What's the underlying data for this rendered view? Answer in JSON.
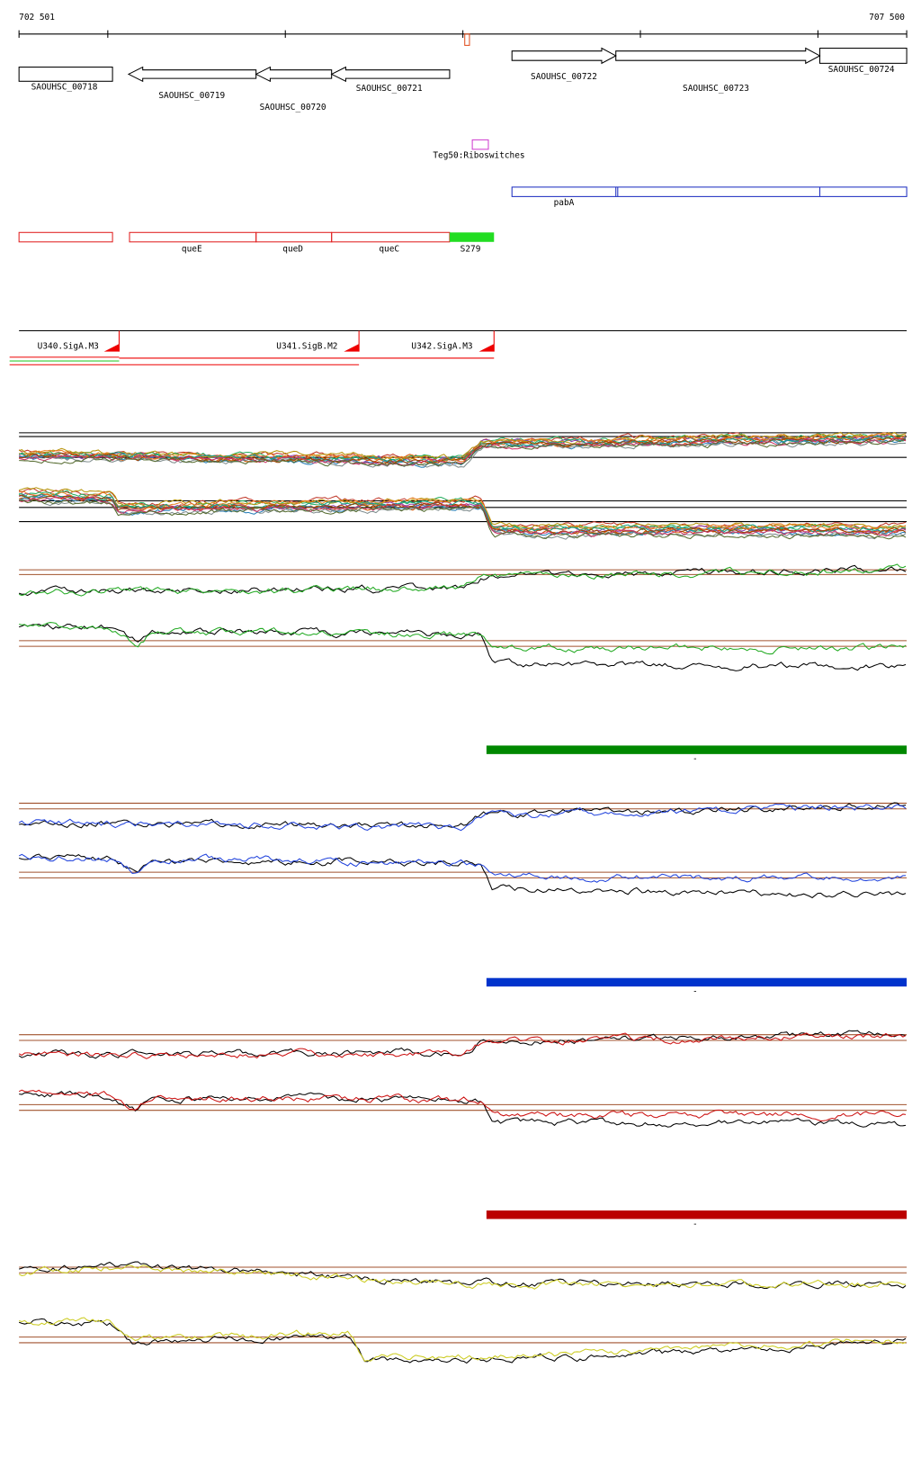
{
  "ruler": {
    "start": "702 501",
    "end": "707 500"
  },
  "genes": [
    "SAOUHSC_00718",
    "SAOUHSC_00719",
    "SAOUHSC_00720",
    "SAOUHSC_00721",
    "SAOUHSC_00722",
    "SAOUHSC_00723",
    "SAOUHSC_00724"
  ],
  "riboswitch": "Teg50:Riboswitches",
  "operon": "pabA",
  "rna_features": [
    "queE",
    "queD",
    "queC",
    "S279"
  ],
  "promoters": [
    "U340.SigA.M3",
    "U341.SigB.M2",
    "U342.SigA.M3"
  ],
  "track_markers": [
    "-",
    "-",
    "-"
  ]
}
